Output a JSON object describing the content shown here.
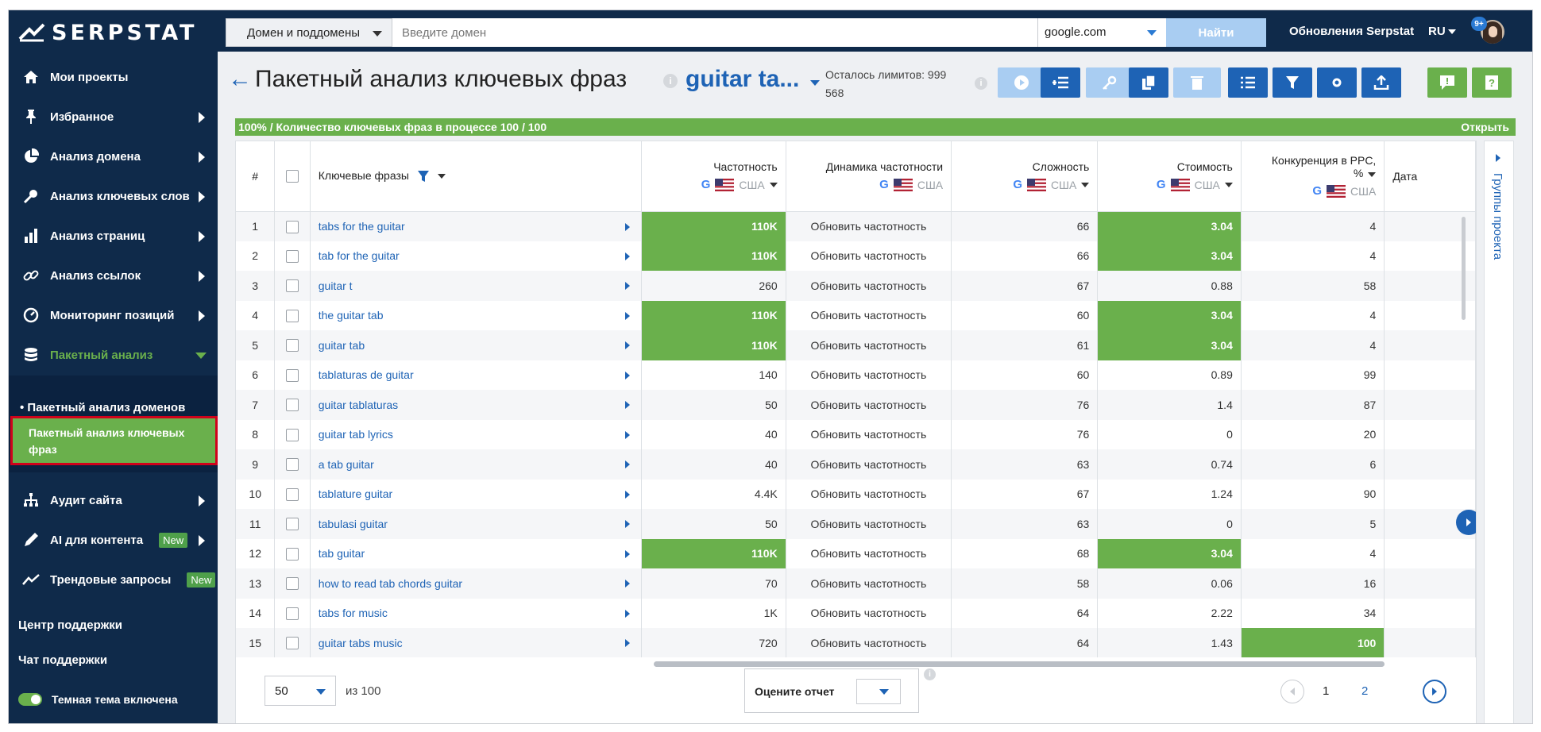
{
  "brand": {
    "name": "SERPSTAT"
  },
  "sidebar": {
    "items": [
      {
        "label": "Мои проекты",
        "icon": "home-icon"
      },
      {
        "label": "Избранное",
        "icon": "pin-icon"
      },
      {
        "label": "Анализ домена",
        "icon": "pie-icon"
      },
      {
        "label": "Анализ ключевых слов",
        "icon": "key-icon"
      },
      {
        "label": "Анализ страниц",
        "icon": "bars-icon"
      },
      {
        "label": "Анализ ссылок",
        "icon": "link-icon"
      },
      {
        "label": "Мониторинг позиций",
        "icon": "gauge-icon"
      },
      {
        "label": "Пакетный анализ",
        "icon": "database-icon"
      },
      {
        "label": "Аудит сайта",
        "icon": "sitemap-icon"
      },
      {
        "label": "AI для контента",
        "icon": "pen-icon",
        "badge": "New"
      },
      {
        "label": "Трендовые запросы",
        "icon": "trend-icon",
        "badge": "New"
      }
    ],
    "subitems": [
      {
        "label": "Пакетный анализ доменов"
      },
      {
        "label": "Пакетный анализ ключевых фраз"
      }
    ],
    "support_center": "Центр поддержки",
    "support_chat": "Чат поддержки",
    "dark_theme": "Темная тема включена"
  },
  "topbar": {
    "domain_mode": "Домен и поддомены",
    "domain_placeholder": "Введите домен",
    "engine": "google.com",
    "find_button": "Найти",
    "updates": "Обновления Serpstat",
    "lang": "RU",
    "notifications": "9+"
  },
  "header": {
    "back": "←",
    "title": "Пакетный анализ ключевых фраз",
    "project": "guitar ta...",
    "limits_line1": "Осталось лимитов: 999",
    "limits_line2": "568",
    "info": "i"
  },
  "progress": {
    "text": "100% / Количество ключевых фраз в процессе 100 / 100",
    "open": "Открыть"
  },
  "table": {
    "columns": {
      "num": "#",
      "keywords": "Ключевые фразы",
      "frequency": "Частотность",
      "dynamics": "Динамика частотности",
      "difficulty": "Сложность",
      "cost": "Стоимость",
      "competition_line1": "Конкуренция в PPC,",
      "competition_line2": "%",
      "date": "Дата",
      "region": "США",
      "google": "G"
    },
    "rows": [
      {
        "n": "1",
        "kw": "tabs for the guitar",
        "freq": "110K",
        "dyn": "Обновить частотность",
        "diff": "66",
        "cost": "3.04",
        "comp": "4"
      },
      {
        "n": "2",
        "kw": "tab for the guitar",
        "freq": "110K",
        "dyn": "Обновить частотность",
        "diff": "66",
        "cost": "3.04",
        "comp": "4"
      },
      {
        "n": "3",
        "kw": "guitar t",
        "freq": "260",
        "dyn": "Обновить частотность",
        "diff": "67",
        "cost": "0.88",
        "comp": "58"
      },
      {
        "n": "4",
        "kw": "the guitar tab",
        "freq": "110K",
        "dyn": "Обновить частотность",
        "diff": "60",
        "cost": "3.04",
        "comp": "4"
      },
      {
        "n": "5",
        "kw": "guitar tab",
        "freq": "110K",
        "dyn": "Обновить частотность",
        "diff": "61",
        "cost": "3.04",
        "comp": "4"
      },
      {
        "n": "6",
        "kw": "tablaturas de guitar",
        "freq": "140",
        "dyn": "Обновить частотность",
        "diff": "60",
        "cost": "0.89",
        "comp": "99"
      },
      {
        "n": "7",
        "kw": "guitar tablaturas",
        "freq": "50",
        "dyn": "Обновить частотность",
        "diff": "76",
        "cost": "1.4",
        "comp": "87"
      },
      {
        "n": "8",
        "kw": "guitar tab lyrics",
        "freq": "40",
        "dyn": "Обновить частотность",
        "diff": "76",
        "cost": "0",
        "comp": "20"
      },
      {
        "n": "9",
        "kw": "a tab guitar",
        "freq": "40",
        "dyn": "Обновить частотность",
        "diff": "63",
        "cost": "0.74",
        "comp": "6"
      },
      {
        "n": "10",
        "kw": "tablature guitar",
        "freq": "4.4K",
        "dyn": "Обновить частотность",
        "diff": "67",
        "cost": "1.24",
        "comp": "90"
      },
      {
        "n": "11",
        "kw": "tabulasi guitar",
        "freq": "50",
        "dyn": "Обновить частотность",
        "diff": "63",
        "cost": "0",
        "comp": "5"
      },
      {
        "n": "12",
        "kw": "tab guitar",
        "freq": "110K",
        "dyn": "Обновить частотность",
        "diff": "68",
        "cost": "3.04",
        "comp": "4"
      },
      {
        "n": "13",
        "kw": "how to read tab chords guitar",
        "freq": "70",
        "dyn": "Обновить частотность",
        "diff": "58",
        "cost": "0.06",
        "comp": "16"
      },
      {
        "n": "14",
        "kw": "tabs for music",
        "freq": "1K",
        "dyn": "Обновить частотность",
        "diff": "64",
        "cost": "2.22",
        "comp": "34"
      },
      {
        "n": "15",
        "kw": "guitar tabs music",
        "freq": "720",
        "dyn": "Обновить частотность",
        "diff": "64",
        "cost": "1.43",
        "comp": "100"
      }
    ]
  },
  "groups_tab": {
    "label": "Группы проекта"
  },
  "pagination": {
    "per_page": "50",
    "of_total": "из 100",
    "rate_label": "Оцените отчет",
    "info": "i",
    "pages": [
      "1",
      "2"
    ]
  },
  "colors": {
    "accent": "#1e63b5",
    "highlight": "#6ab04c",
    "sidebar": "#0f2a4a"
  }
}
